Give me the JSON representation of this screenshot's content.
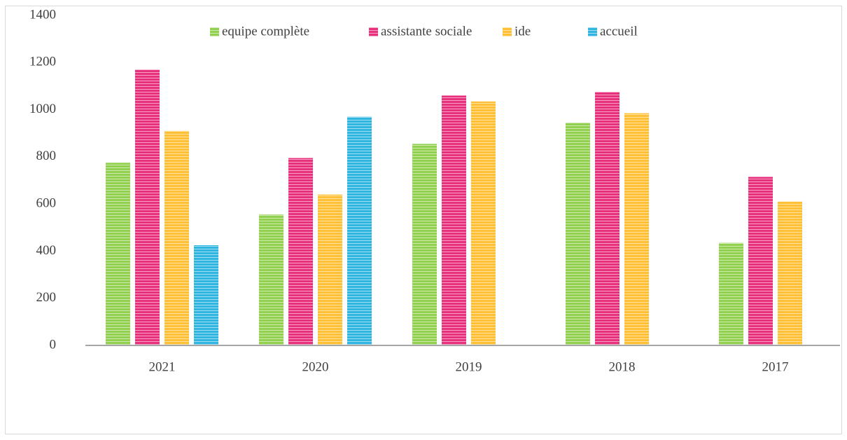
{
  "chart_data": {
    "type": "bar",
    "categories": [
      "2021",
      "2020",
      "2019",
      "2018",
      "2017"
    ],
    "series": [
      {
        "name": "equipe complète",
        "color": "#92d050",
        "values": [
          775,
          555,
          855,
          945,
          435
        ]
      },
      {
        "name": "assistante sociale",
        "color": "#e8317d",
        "values": [
          1170,
          795,
          1060,
          1075,
          715
        ]
      },
      {
        "name": "ide",
        "color": "#ffc036",
        "values": [
          910,
          640,
          1035,
          985,
          610
        ]
      },
      {
        "name": "accueil",
        "color": "#2fb5e0",
        "values": [
          425,
          970,
          null,
          null,
          null
        ]
      }
    ],
    "ylim": [
      0,
      1400
    ],
    "yticks": [
      0,
      200,
      400,
      600,
      800,
      1000,
      1200,
      1400
    ],
    "grid": false,
    "legend": "top"
  }
}
